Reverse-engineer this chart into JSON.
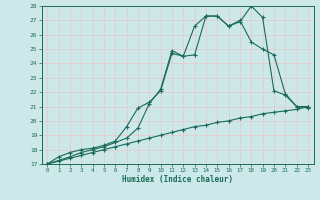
{
  "bg_color": "#cce8e8",
  "grid_color": "#b8d8d8",
  "line_color": "#1a6b5a",
  "xlabel": "Humidex (Indice chaleur)",
  "xlim": [
    -0.5,
    23.5
  ],
  "ylim": [
    17,
    28
  ],
  "yticks": [
    17,
    18,
    19,
    20,
    21,
    22,
    23,
    24,
    25,
    26,
    27,
    28
  ],
  "xticks": [
    0,
    1,
    2,
    3,
    4,
    5,
    6,
    7,
    8,
    9,
    10,
    11,
    12,
    13,
    14,
    15,
    16,
    17,
    18,
    19,
    20,
    21,
    22,
    23
  ],
  "curve1_x": [
    0,
    1,
    2,
    3,
    4,
    5,
    6,
    7,
    8,
    9,
    10,
    11,
    12,
    13,
    14,
    15,
    16,
    17,
    18,
    19,
    20,
    21,
    22,
    23
  ],
  "curve1_y": [
    17.0,
    17.2,
    17.4,
    17.6,
    17.8,
    18.0,
    18.2,
    18.4,
    18.6,
    18.8,
    19.0,
    19.2,
    19.4,
    19.6,
    19.7,
    19.9,
    20.0,
    20.2,
    20.3,
    20.5,
    20.6,
    20.7,
    20.8,
    21.0
  ],
  "curve2_x": [
    0,
    2,
    3,
    4,
    5,
    6,
    7,
    8,
    9,
    10,
    11,
    12,
    13,
    14,
    15,
    16,
    17,
    18,
    19,
    20,
    21,
    22,
    23
  ],
  "curve2_y": [
    17.0,
    17.5,
    17.8,
    18.0,
    18.2,
    18.5,
    18.8,
    19.5,
    21.2,
    22.2,
    24.9,
    24.5,
    24.6,
    27.3,
    27.3,
    26.6,
    27.0,
    25.5,
    25.0,
    24.6,
    21.9,
    21.0,
    21.0
  ],
  "curve3_x": [
    0,
    1,
    2,
    3,
    4,
    5,
    6,
    7,
    8,
    9,
    10,
    11,
    12,
    13,
    14,
    15,
    16,
    17,
    18,
    19,
    20,
    21,
    22,
    23
  ],
  "curve3_y": [
    17.0,
    17.5,
    17.8,
    18.0,
    18.1,
    18.3,
    18.6,
    19.6,
    20.9,
    21.3,
    22.1,
    24.7,
    24.5,
    26.6,
    27.3,
    27.3,
    26.6,
    26.9,
    28.0,
    27.2,
    22.1,
    21.8,
    21.0,
    20.9
  ]
}
